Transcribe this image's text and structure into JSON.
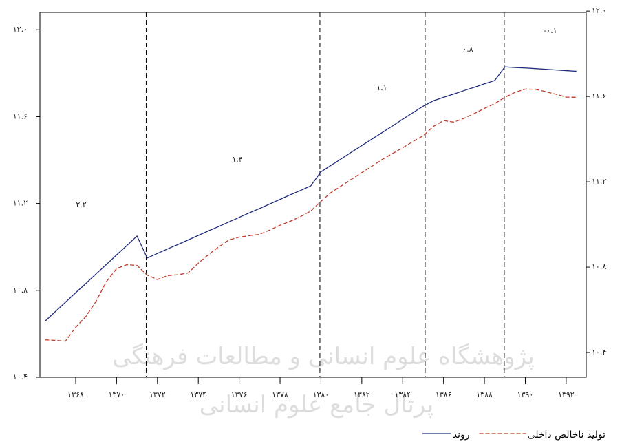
{
  "chart_data": {
    "type": "line",
    "x": [
      1366.5,
      1367,
      1367.5,
      1368,
      1368.5,
      1369,
      1369.5,
      1370,
      1370.5,
      1371,
      1371.5,
      1372,
      1372.5,
      1373,
      1373.5,
      1374,
      1374.5,
      1375,
      1375.5,
      1376,
      1376.5,
      1377,
      1377.5,
      1378,
      1378.5,
      1379,
      1379.5,
      1380,
      1380.5,
      1381,
      1381.5,
      1382,
      1382.5,
      1383,
      1383.5,
      1384,
      1384.5,
      1385,
      1385.5,
      1386,
      1386.5,
      1387,
      1387.5,
      1388,
      1388.5,
      1389,
      1389.5,
      1390,
      1390.5,
      1391,
      1391.5,
      1392,
      1392.5
    ],
    "series": [
      {
        "name": "روند",
        "color": "#1f2a7a",
        "dashed": false,
        "values": [
          10.658,
          10.702,
          10.745,
          10.789,
          10.832,
          10.876,
          10.919,
          10.963,
          11.006,
          11.05,
          10.949,
          10.97,
          10.991,
          11.011,
          11.032,
          11.053,
          11.074,
          11.094,
          11.115,
          11.136,
          11.157,
          11.177,
          11.198,
          11.219,
          11.24,
          11.26,
          11.281,
          11.346,
          11.376,
          11.406,
          11.437,
          11.467,
          11.497,
          11.527,
          11.557,
          11.588,
          11.618,
          11.648,
          11.673,
          11.689,
          11.704,
          11.72,
          11.735,
          11.751,
          11.766,
          11.829,
          11.826,
          11.824,
          11.821,
          11.818,
          11.815,
          11.812,
          11.809
        ]
      },
      {
        "name": "تولید ناخالص داخلی",
        "color": "#c0392b",
        "dashed": true,
        "values": [
          10.572,
          10.57,
          10.566,
          10.63,
          10.68,
          10.75,
          10.84,
          10.9,
          10.918,
          10.915,
          10.87,
          10.85,
          10.868,
          10.872,
          10.88,
          10.925,
          10.965,
          11.0,
          11.032,
          11.045,
          11.052,
          11.058,
          11.078,
          11.1,
          11.118,
          11.14,
          11.165,
          11.21,
          11.251,
          11.281,
          11.312,
          11.342,
          11.372,
          11.403,
          11.43,
          11.457,
          11.485,
          11.512,
          11.555,
          11.582,
          11.575,
          11.592,
          11.614,
          11.638,
          11.66,
          11.689,
          11.712,
          11.727,
          11.726,
          11.715,
          11.703,
          11.69,
          11.689
        ]
      }
    ],
    "xlim": [
      1366.25,
      1392.98
    ],
    "xticks": [
      {
        "value": 1368,
        "label": "۱۳۶۸"
      },
      {
        "value": 1370,
        "label": "۱۳۷۰"
      },
      {
        "value": 1372,
        "label": "۱۳۷۲"
      },
      {
        "value": 1374,
        "label": "۱۳۷۴"
      },
      {
        "value": 1376,
        "label": "۱۳۷۶"
      },
      {
        "value": 1378,
        "label": "۱۳۷۸"
      },
      {
        "value": 1380,
        "label": "۱۳۸۰"
      },
      {
        "value": 1382,
        "label": "۱۳۸۲"
      },
      {
        "value": 1384,
        "label": "۱۳۸۴"
      },
      {
        "value": 1386,
        "label": "۱۳۸۶"
      },
      {
        "value": 1388,
        "label": "۱۳۸۸"
      },
      {
        "value": 1390,
        "label": "۱۳۹۰"
      },
      {
        "value": 1392,
        "label": "۱۳۹۲"
      }
    ],
    "ylim": [
      10.4,
      12.08
    ],
    "yticks": [
      {
        "value": 10.4,
        "label": "۱۰.۴"
      },
      {
        "value": 10.8,
        "label": "۱۰.۸"
      },
      {
        "value": 11.2,
        "label": "۱۱.۲"
      },
      {
        "value": 11.6,
        "label": "۱۱.۶"
      },
      {
        "value": 12.0,
        "label": "۱۲.۰"
      }
    ],
    "y2lim": [
      10.284,
      11.994
    ],
    "y2ticks": [
      {
        "value": 10.4,
        "label": "۱۰.۴"
      },
      {
        "value": 10.8,
        "label": "۱۰.۸"
      },
      {
        "value": 11.2,
        "label": "۱۱.۲"
      },
      {
        "value": 11.6,
        "label": "۱۱.۶"
      },
      {
        "value": 12.0,
        "label": "۱۲.۰"
      }
    ],
    "breaks": [
      1371.45,
      1379.95,
      1385.1,
      1388.97
    ],
    "annotations": [
      "۲.۲",
      "۱.۴",
      "۱.۱",
      "۰.۸",
      "-۰.۱"
    ],
    "watermark": [
      "پژوهشگاه علوم انسانی و مطالعات فرهنگی",
      "پرتال جامع علوم انسانی"
    ]
  }
}
